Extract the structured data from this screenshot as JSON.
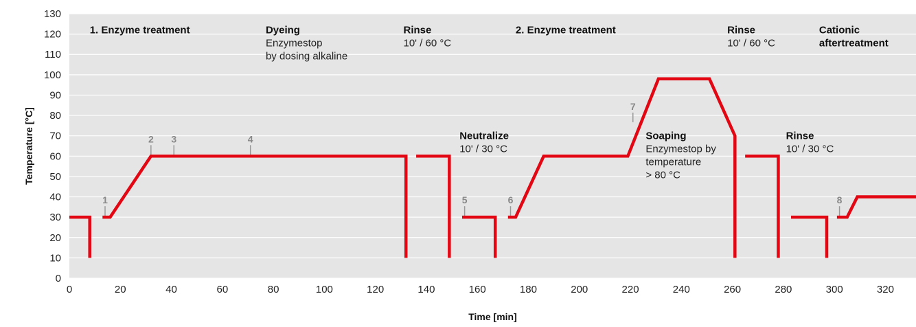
{
  "chart_data": {
    "type": "line",
    "xlabel": "Time [min]",
    "ylabel": "Temperature [°C]",
    "xlim": [
      0,
      332
    ],
    "ylim": [
      0,
      130
    ],
    "xticks": [
      0,
      20,
      40,
      60,
      80,
      100,
      120,
      140,
      160,
      180,
      200,
      220,
      240,
      260,
      280,
      300,
      320
    ],
    "yticks": [
      0,
      10,
      20,
      30,
      40,
      50,
      60,
      70,
      80,
      90,
      100,
      110,
      120,
      130
    ],
    "grid": "horizontal",
    "background": "#e5e5e5",
    "line_color": "#e30613",
    "segments": [
      {
        "x": [
          0,
          8,
          8
        ],
        "y": [
          30,
          30,
          10
        ]
      },
      {
        "x": [
          13,
          16,
          32,
          132,
          132
        ],
        "y": [
          30,
          30,
          60,
          60,
          10
        ]
      },
      {
        "x": [
          136,
          149,
          149
        ],
        "y": [
          60,
          60,
          10
        ]
      },
      {
        "x": [
          154,
          167,
          167
        ],
        "y": [
          30,
          30,
          10
        ]
      },
      {
        "x": [
          172,
          175,
          186,
          219,
          231,
          251,
          261,
          261
        ],
        "y": [
          30,
          30,
          60,
          60,
          98,
          98,
          70,
          10
        ]
      },
      {
        "x": [
          265,
          278,
          278
        ],
        "y": [
          60,
          60,
          10
        ]
      },
      {
        "x": [
          283,
          297,
          297
        ],
        "y": [
          30,
          30,
          10
        ]
      },
      {
        "x": [
          301,
          305,
          309,
          332
        ],
        "y": [
          30,
          30,
          40,
          40
        ]
      }
    ],
    "markers": [
      {
        "label": "1",
        "x": 14,
        "y": 30
      },
      {
        "label": "2",
        "x": 32,
        "y": 60
      },
      {
        "label": "3",
        "x": 41,
        "y": 60
      },
      {
        "label": "4",
        "x": 71,
        "y": 60
      },
      {
        "label": "5",
        "x": 155,
        "y": 30
      },
      {
        "label": "6",
        "x": 173,
        "y": 30
      },
      {
        "label": "7",
        "x": 221,
        "y": 76
      },
      {
        "label": "8",
        "x": 302,
        "y": 30
      }
    ],
    "annotations": [
      {
        "x": 8,
        "y": 122,
        "lines": [
          "1. Enzyme treatment"
        ],
        "bold_first": true
      },
      {
        "x": 77,
        "y": 122,
        "lines": [
          "Dyeing",
          "Enzymestop",
          "by dosing alkaline"
        ],
        "bold_first": true
      },
      {
        "x": 131,
        "y": 122,
        "lines": [
          "Rinse",
          "10' / 60 °C"
        ],
        "bold_first": true
      },
      {
        "x": 175,
        "y": 122,
        "lines": [
          "2. Enzyme treatment"
        ],
        "bold_first": true
      },
      {
        "x": 258,
        "y": 122,
        "lines": [
          "Rinse",
          "10' / 60 °C"
        ],
        "bold_first": true
      },
      {
        "x": 294,
        "y": 122,
        "lines": [
          "Cationic",
          "aftertreatment"
        ],
        "bold_all": true
      },
      {
        "x": 153,
        "y": 70,
        "lines": [
          "Neutralize",
          "10' / 30 °C"
        ],
        "bold_first": true
      },
      {
        "x": 226,
        "y": 70,
        "lines": [
          "Soaping",
          "Enzymestop by",
          "temperature",
          "> 80 °C"
        ],
        "bold_first": true
      },
      {
        "x": 281,
        "y": 70,
        "lines": [
          "Rinse",
          "10' / 30 °C"
        ],
        "bold_first": true
      }
    ]
  }
}
